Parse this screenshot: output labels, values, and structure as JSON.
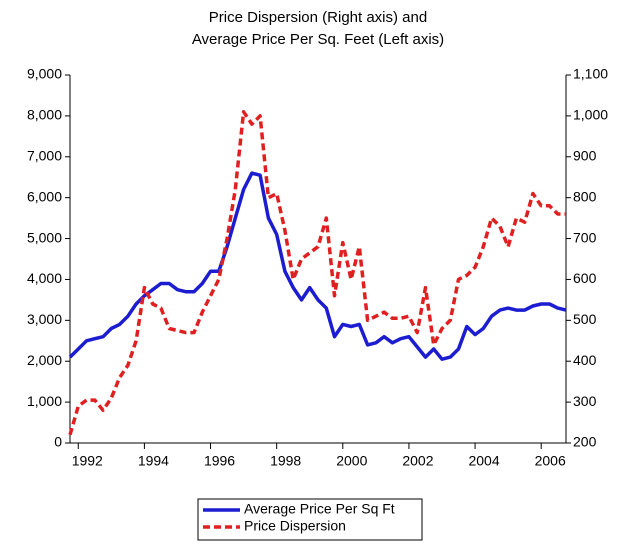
{
  "chart_data": {
    "type": "line",
    "title": [
      "Price Dispersion (Right axis) and",
      "Average Price Per Sq. Feet (Left axis)"
    ],
    "x": [
      1991.75,
      1992,
      1992.25,
      1992.5,
      1992.75,
      1993,
      1993.25,
      1993.5,
      1993.75,
      1994,
      1994.25,
      1994.5,
      1994.75,
      1995,
      1995.25,
      1995.5,
      1995.75,
      1996,
      1996.25,
      1996.5,
      1996.75,
      1997,
      1997.25,
      1997.5,
      1997.75,
      1998,
      1998.25,
      1998.5,
      1998.75,
      1999,
      1999.25,
      1999.5,
      1999.75,
      2000,
      2000.25,
      2000.5,
      2000.75,
      2001,
      2001.25,
      2001.5,
      2001.75,
      2002,
      2002.25,
      2002.5,
      2002.75,
      2003,
      2003.25,
      2003.5,
      2003.75,
      2004,
      2004.25,
      2004.5,
      2004.75,
      2005,
      2005.25,
      2005.5,
      2005.75,
      2006,
      2006.25,
      2006.5,
      2006.75
    ],
    "series": [
      {
        "name": "Average Price Per Sq Ft",
        "color": "#1c1cd0",
        "line_style": "solid",
        "axis": "y",
        "values": [
          2100,
          2300,
          2500,
          2550,
          2600,
          2800,
          2900,
          3100,
          3400,
          3600,
          3750,
          3900,
          3900,
          3750,
          3700,
          3700,
          3900,
          4200,
          4200,
          4800,
          5500,
          6200,
          6600,
          6550,
          5500,
          5100,
          4200,
          3800,
          3500,
          3800,
          3500,
          3300,
          2600,
          2900,
          2850,
          2900,
          2400,
          2450,
          2600,
          2450,
          2550,
          2600,
          2350,
          2100,
          2300,
          2050,
          2100,
          2300,
          2850,
          2650,
          2800,
          3100,
          3250,
          3300,
          3250,
          3250,
          3350,
          3400,
          3400,
          3300,
          3250
        ]
      },
      {
        "name": "Price Dispersion",
        "color": "#e02020",
        "line_style": "dashed",
        "axis": "y2",
        "values": [
          220,
          290,
          305,
          305,
          280,
          310,
          360,
          390,
          450,
          580,
          540,
          530,
          480,
          475,
          470,
          470,
          520,
          560,
          600,
          700,
          820,
          1010,
          980,
          1000,
          800,
          810,
          720,
          600,
          650,
          665,
          680,
          750,
          560,
          690,
          600,
          680,
          500,
          510,
          520,
          505,
          505,
          510,
          470,
          580,
          440,
          480,
          500,
          600,
          610,
          630,
          680,
          750,
          730,
          680,
          750,
          740,
          810,
          780,
          780,
          760,
          760
        ]
      }
    ],
    "xlim": [
      1991.75,
      2006.75
    ],
    "xticks": [
      1992,
      1994,
      1996,
      1998,
      2000,
      2002,
      2004,
      2006
    ],
    "ylim": [
      0,
      9000
    ],
    "yticks": [
      0,
      {
        "value": 1000,
        "label": "1,000"
      },
      {
        "value": 2000,
        "label": "2,000"
      },
      {
        "value": 3000,
        "label": "3,000"
      },
      {
        "value": 4000,
        "label": "4,000"
      },
      {
        "value": 5000,
        "label": "5,000"
      },
      {
        "value": 6000,
        "label": "6,000"
      },
      {
        "value": 7000,
        "label": "7,000"
      },
      {
        "value": 8000,
        "label": "8,000"
      },
      {
        "value": 9000,
        "label": "9,000"
      }
    ],
    "y2lim": [
      200,
      1100
    ],
    "y2ticks": [
      200,
      300,
      400,
      500,
      600,
      700,
      800,
      900,
      {
        "value": 1000,
        "label": "1,000"
      },
      {
        "value": 1100,
        "label": "1,100"
      }
    ],
    "legend": "bottom"
  }
}
